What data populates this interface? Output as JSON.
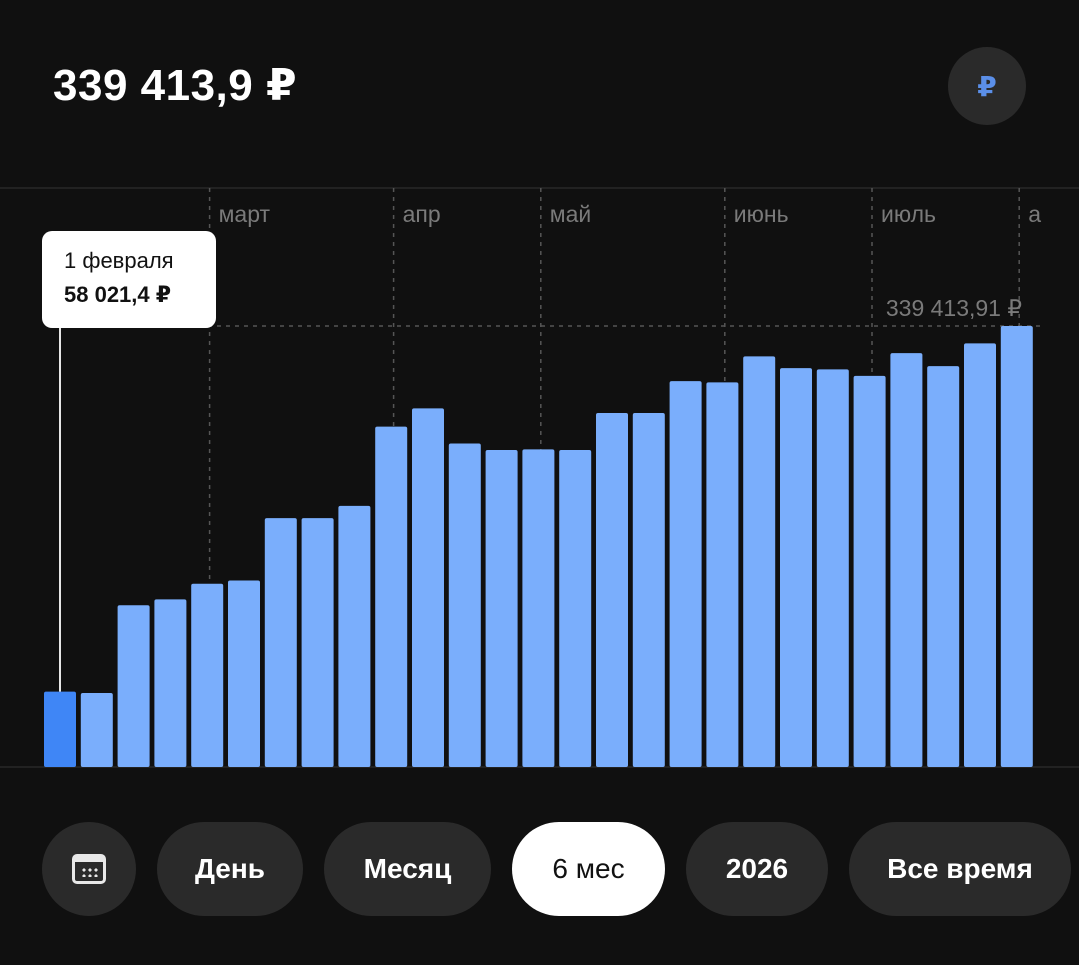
{
  "header": {
    "balance": "339 413,9 ₽",
    "currency_symbol": "₽"
  },
  "tooltip": {
    "date": "1 февраля",
    "value": "58 021,4 ₽"
  },
  "controls": {
    "periods": [
      {
        "label": "День",
        "active": false
      },
      {
        "label": "Месяц",
        "active": false
      },
      {
        "label": "6 мес",
        "active": true
      },
      {
        "label": "2026",
        "active": false
      },
      {
        "label": "Все время",
        "active": false
      }
    ]
  },
  "colors": {
    "bar": "#7aaefc",
    "bar_selected": "#3f86f6",
    "background": "#101010"
  },
  "chart_data": {
    "type": "bar",
    "max_label": "339 413,91 ₽",
    "month_labels": [
      {
        "label": "март",
        "at_index": 4.5
      },
      {
        "label": "апр",
        "at_index": 9.5
      },
      {
        "label": "май",
        "at_index": 13.5
      },
      {
        "label": "июнь",
        "at_index": 18.5
      },
      {
        "label": "июль",
        "at_index": 22.5
      },
      {
        "label": "а",
        "at_index": 26.5
      }
    ],
    "selected_index": 0,
    "values": [
      58021,
      57000,
      124500,
      129000,
      141000,
      143500,
      191500,
      191500,
      201000,
      262000,
      276000,
      249000,
      244000,
      244500,
      244000,
      272500,
      272500,
      297000,
      296000,
      316000,
      307000,
      306000,
      301000,
      318500,
      308500,
      326000,
      339414
    ],
    "ylim": [
      0,
      339414
    ]
  }
}
